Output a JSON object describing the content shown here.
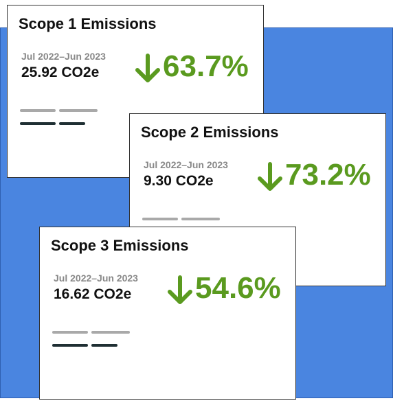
{
  "cards": [
    {
      "title": "Scope 1 Emissions",
      "period": "Jul 2022–Jun 2023",
      "value": "25.92 CO2e",
      "change": "63.7%"
    },
    {
      "title": "Scope 2 Emissions",
      "period": "Jul 2022–Jun 2023",
      "value": "9.30 CO2e",
      "change": "73.2%"
    },
    {
      "title": "Scope 3 Emissions",
      "period": "Jul 2022–Jun 2023",
      "value": "16.62 CO2e",
      "change": "54.6%"
    }
  ]
}
